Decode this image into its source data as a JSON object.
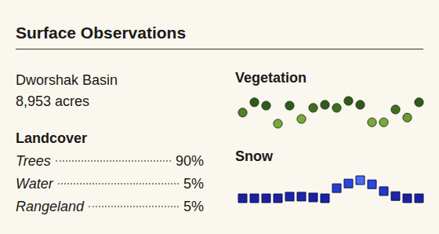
{
  "title": "Surface Observations",
  "basin": {
    "name": "Dworshak Basin",
    "area": "8,953 acres"
  },
  "landcover": {
    "title": "Landcover",
    "rows": [
      {
        "label": "Trees",
        "share": "90%"
      },
      {
        "label": "Water",
        "share": "5%"
      },
      {
        "label": "Rangeland",
        "share": "5%"
      }
    ]
  },
  "chart_data": [
    {
      "type": "scatter",
      "title": "Vegetation",
      "marker": "circle",
      "tick_labels": false,
      "categories": [
        null,
        null,
        null,
        null,
        null,
        null,
        null,
        null,
        null,
        null,
        null,
        null,
        null,
        null,
        null,
        null
      ],
      "values": [
        4.9,
        8.6,
        7.4,
        0.9,
        7.4,
        2.6,
        6.6,
        7.7,
        6.6,
        9.1,
        7.7,
        1.4,
        1.4,
        6.0,
        3.1,
        8.6
      ],
      "colors": [
        "#4f8026",
        "#2f5a1c",
        "#2f5a1c",
        "#7aa83a",
        "#2f5a1c",
        "#7aa83a",
        "#3f6e22",
        "#2f5a1c",
        "#3f6e22",
        "#2f5a1c",
        "#2f5a1c",
        "#7aa83a",
        "#7aa83a",
        "#3f6e22",
        "#6a9a32",
        "#2f5a1c"
      ]
    },
    {
      "type": "scatter",
      "title": "Snow",
      "marker": "square",
      "tick_labels": false,
      "categories": [
        null,
        null,
        null,
        null,
        null,
        null,
        null,
        null,
        null,
        null,
        null,
        null,
        null,
        null,
        null,
        null
      ],
      "values": [
        2.3,
        2.3,
        2.3,
        2.3,
        2.9,
        2.9,
        2.6,
        2.3,
        6.0,
        7.7,
        8.9,
        7.4,
        4.9,
        3.1,
        2.3,
        2.3
      ],
      "colors": [
        "#1a22a0",
        "#1a22a0",
        "#1a22a0",
        "#1a22a0",
        "#1c26a8",
        "#1c26a8",
        "#1a22a0",
        "#1a22a0",
        "#2540d0",
        "#2a46dc",
        "#4a6cf0",
        "#2a46dc",
        "#2238c8",
        "#1c26a8",
        "#1a22a0",
        "#1a22a0"
      ]
    }
  ]
}
